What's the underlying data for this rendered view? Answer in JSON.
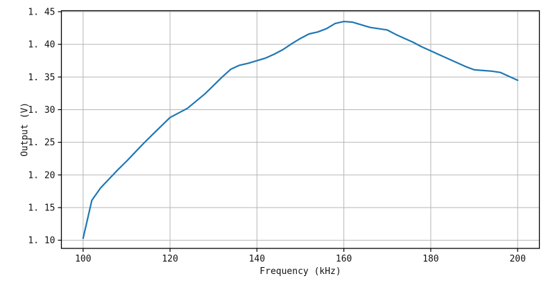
{
  "figure": {
    "xlabel": "Frequency (kHz)",
    "ylabel": "Output (V)"
  },
  "chart_data": {
    "type": "line",
    "title": "",
    "xlabel": "Frequency (kHz)",
    "ylabel": "Output (V)",
    "x": [
      100,
      102,
      104,
      106,
      108,
      110,
      112,
      114,
      116,
      118,
      120,
      122,
      124,
      126,
      128,
      130,
      132,
      134,
      136,
      138,
      140,
      142,
      144,
      146,
      148,
      150,
      152,
      154,
      156,
      158,
      160,
      162,
      164,
      166,
      168,
      170,
      172,
      174,
      176,
      178,
      180,
      182,
      184,
      186,
      188,
      190,
      192,
      194,
      196,
      198,
      200
    ],
    "y": [
      1.103,
      1.161,
      1.18,
      1.194,
      1.208,
      1.221,
      1.235,
      1.249,
      1.262,
      1.275,
      1.288,
      1.295,
      1.302,
      1.313,
      1.324,
      1.337,
      1.35,
      1.362,
      1.368,
      1.371,
      1.375,
      1.379,
      1.385,
      1.392,
      1.401,
      1.409,
      1.416,
      1.419,
      1.424,
      1.432,
      1.435,
      1.434,
      1.43,
      1.426,
      1.424,
      1.422,
      1.415,
      1.409,
      1.403,
      1.396,
      1.39,
      1.384,
      1.378,
      1.372,
      1.366,
      1.361,
      1.36,
      1.359,
      1.357,
      1.351,
      1.345
    ],
    "xlim": [
      95,
      205
    ],
    "ylim": [
      1.0875,
      1.4515
    ],
    "xticks": [
      100,
      120,
      140,
      160,
      180,
      200
    ],
    "xtick_labels": [
      "100",
      "120",
      "140",
      "160",
      "180",
      "200"
    ],
    "yticks": [
      1.1,
      1.15,
      1.2,
      1.25,
      1.3,
      1.35,
      1.4,
      1.45
    ],
    "ytick_labels": [
      "1. 10",
      "1. 15",
      "1. 20",
      "1. 25",
      "1. 30",
      "1. 35",
      "1. 40",
      "1. 45"
    ],
    "grid": true,
    "legend": false,
    "line_color": "#1f77b4",
    "grid_color": "#b6b6b6",
    "spine_color": "#000000",
    "tick_label_color": "#111111",
    "background": "#ffffff"
  }
}
